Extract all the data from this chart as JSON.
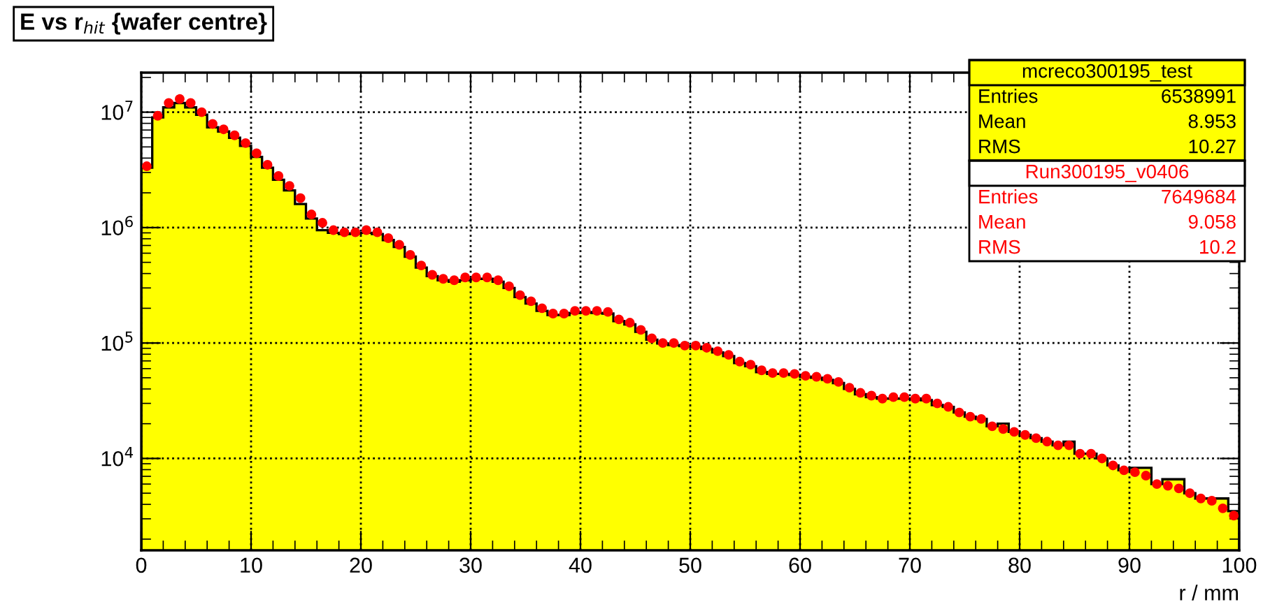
{
  "chart_data": {
    "type": "histogram",
    "title": "E vs r$_{hit}$ {wafer centre}",
    "xlabel": "r / mm",
    "bins": [
      0,
      1,
      2,
      3,
      4,
      5,
      6,
      7,
      8,
      9,
      10,
      11,
      12,
      13,
      14,
      15,
      16,
      17,
      18,
      19,
      20,
      21,
      22,
      23,
      24,
      25,
      26,
      27,
      28,
      29,
      30,
      31,
      32,
      33,
      34,
      35,
      36,
      37,
      38,
      39,
      40,
      41,
      42,
      43,
      44,
      45,
      46,
      47,
      48,
      49,
      50,
      51,
      52,
      53,
      54,
      55,
      56,
      57,
      58,
      59,
      60,
      61,
      62,
      63,
      64,
      65,
      66,
      67,
      68,
      69,
      70,
      71,
      72,
      73,
      74,
      75,
      76,
      77,
      78,
      79,
      80,
      81,
      82,
      83,
      84,
      85,
      86,
      87,
      88,
      89,
      90,
      91,
      92,
      93,
      94,
      95,
      96,
      97,
      98,
      99,
      100
    ],
    "series": [
      {
        "name": "mcreco300195_test",
        "color": "#ffff00",
        "values": [
          3300000,
          9000000,
          11000000,
          12000000,
          11000000,
          9500000,
          7400000,
          6800000,
          6000000,
          5100000,
          4100000,
          3300000,
          2600000,
          2100000,
          1600000,
          1200000,
          950000,
          900000,
          880000,
          890000,
          900000,
          880000,
          780000,
          680000,
          560000,
          450000,
          380000,
          350000,
          340000,
          350000,
          360000,
          360000,
          340000,
          300000,
          250000,
          220000,
          190000,
          175000,
          175000,
          182000,
          185000,
          182000,
          180000,
          155000,
          145000,
          125000,
          107000,
          99000,
          96000,
          94000,
          93000,
          89000,
          83000,
          77000,
          67000,
          63000,
          56000,
          54000,
          54000,
          53000,
          51000,
          50000,
          48000,
          45000,
          40000,
          36000,
          34000,
          33000,
          33000,
          33000,
          33000,
          32000,
          29000,
          28000,
          25000,
          23000,
          22000,
          19000,
          20000,
          17000,
          16000,
          15000,
          14000,
          13000,
          14000,
          11000,
          11000,
          10000,
          8700,
          7900,
          8300,
          8300,
          6000,
          6600,
          6600,
          5000,
          4500,
          4500,
          4500,
          3500
        ]
      },
      {
        "name": "Run300195_v0406",
        "type": "scatter",
        "color": "#ff0000",
        "x": [
          0.5,
          1.5,
          2.5,
          3.5,
          4.5,
          5.5,
          6.5,
          7.5,
          8.5,
          9.5,
          10.5,
          11.5,
          12.5,
          13.5,
          14.5,
          15.5,
          16.5,
          17.5,
          18.5,
          19.5,
          20.5,
          21.5,
          22.5,
          23.5,
          24.5,
          25.5,
          26.5,
          27.5,
          28.5,
          29.5,
          30.5,
          31.5,
          32.5,
          33.5,
          34.5,
          35.5,
          36.5,
          37.5,
          38.5,
          39.5,
          40.5,
          41.5,
          42.5,
          43.5,
          44.5,
          45.5,
          46.5,
          47.5,
          48.5,
          49.5,
          50.5,
          51.5,
          52.5,
          53.5,
          54.5,
          55.5,
          56.5,
          57.5,
          58.5,
          59.5,
          60.5,
          61.5,
          62.5,
          63.5,
          64.5,
          65.5,
          66.5,
          67.5,
          68.5,
          69.5,
          70.5,
          71.5,
          72.5,
          73.5,
          74.5,
          75.5,
          76.5,
          77.5,
          78.5,
          79.5,
          80.5,
          81.5,
          82.5,
          83.5,
          84.5,
          85.5,
          86.5,
          87.5,
          88.5,
          89.5,
          90.5,
          91.5,
          92.5,
          93.5,
          94.5,
          95.5,
          96.5,
          97.5,
          98.5,
          99.5
        ],
        "values": [
          3400000,
          9300000,
          12000000,
          13000000,
          12000000,
          10000000,
          7900000,
          7100000,
          6300000,
          5400000,
          4400000,
          3500000,
          2800000,
          2300000,
          1800000,
          1300000,
          1100000,
          950000,
          910000,
          910000,
          950000,
          910000,
          810000,
          710000,
          580000,
          470000,
          390000,
          360000,
          350000,
          370000,
          370000,
          370000,
          350000,
          310000,
          260000,
          230000,
          200000,
          180000,
          180000,
          190000,
          190000,
          190000,
          186000,
          160000,
          150000,
          130000,
          110000,
          100000,
          100000,
          95000,
          95000,
          91000,
          85000,
          79000,
          69000,
          65000,
          58000,
          55000,
          55000,
          54000,
          52000,
          51000,
          49000,
          46000,
          41000,
          37000,
          35000,
          33000,
          34000,
          34000,
          33000,
          33000,
          30000,
          28000,
          25000,
          23000,
          22000,
          19000,
          18000,
          17000,
          16000,
          15000,
          14000,
          13000,
          13000,
          11000,
          11000,
          10000,
          8700,
          7900,
          7600,
          7100,
          6000,
          5800,
          5500,
          5000,
          4500,
          4300,
          3700,
          3200
        ]
      }
    ],
    "xlim": [
      0,
      100
    ],
    "xticks": [
      0,
      10,
      20,
      30,
      40,
      50,
      60,
      70,
      80,
      90,
      100
    ],
    "log": "y",
    "ylim": [
      1600,
      22000000
    ],
    "yticks": [
      {
        "value": 10000,
        "label": "10$^{4}$"
      },
      {
        "value": 100000,
        "label": "10$^{5}$"
      },
      {
        "value": 1000000,
        "label": "10$^{6}$"
      },
      {
        "value": 10000000,
        "label": "10$^{7}$"
      }
    ],
    "grid": true,
    "marker": "circle",
    "legend": "top right",
    "annotations": [
      "Entries",
      "6538991",
      "Mean",
      "8.953",
      "RMS",
      "10.27",
      "Entries",
      "7649684",
      "Mean",
      "9.058",
      "RMS",
      "10.2"
    ]
  }
}
